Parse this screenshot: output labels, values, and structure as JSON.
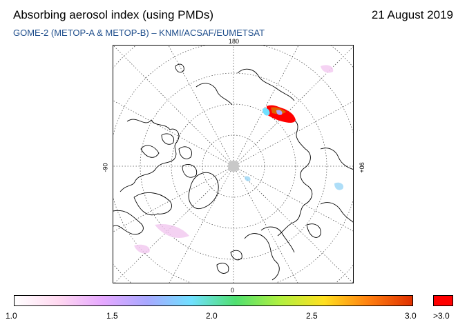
{
  "header": {
    "title": "Absorbing aerosol index (using PMDs)",
    "date": "21 August 2019",
    "subtitle": "GOME-2 (METOP-A & METOP-B)  –  KNMI/ACSAF/EUMETSAT"
  },
  "map": {
    "projection": "north polar stereographic",
    "longitude_labels": {
      "top": "180",
      "bottom": "0",
      "left": "-90",
      "right": "90+"
    },
    "pole_marker_color": "#c8c8c8",
    "coastline_color": "#000000",
    "graticule_color": "#555555"
  },
  "colorbar": {
    "gradient_colors": [
      "#ffffff",
      "#ffd8f0",
      "#e6a8ff",
      "#a8a8ff",
      "#70e0ff",
      "#50e070",
      "#b0f040",
      "#ffe020",
      "#ff8010",
      "#e03000"
    ],
    "over_color": "#ff0000",
    "ticks": [
      "1.0",
      "1.5",
      "2.0",
      "2.5",
      "3.0"
    ],
    "over_label": ">3.0"
  }
}
